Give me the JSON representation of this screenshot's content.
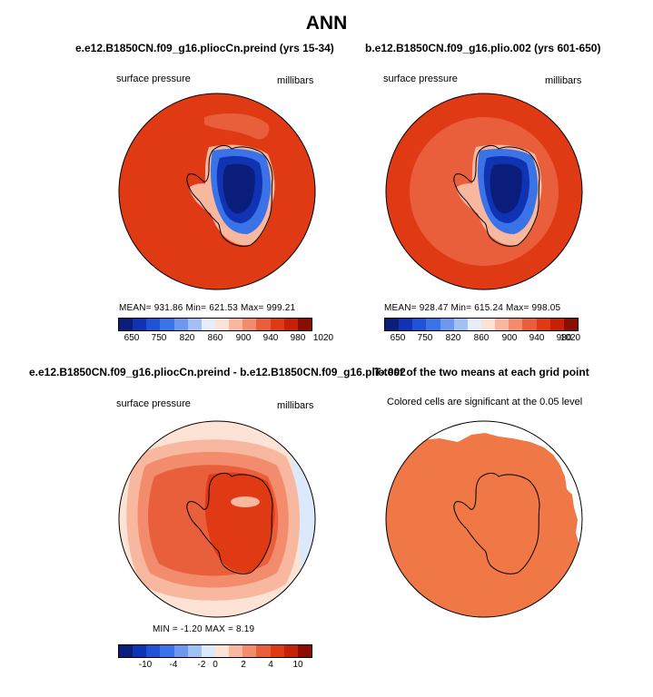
{
  "figure": {
    "title": "ANN"
  },
  "panels": [
    {
      "title": "e.e12.B1850CN.f09_g16.pliocCn.preind (yrs 15-34)",
      "left_label": "surface pressure",
      "right_label": "millibars",
      "stats": "MEAN= 931.86   Min= 621.53   Max= 999.21",
      "colorbar_ticks": [
        "650",
        "750",
        "820",
        "860",
        "900",
        "940",
        "980",
        "1020"
      ]
    },
    {
      "title": "b.e12.B1850CN.f09_g16.plio.002 (yrs 601-650)",
      "left_label": "surface pressure",
      "right_label": "millibars",
      "stats": "MEAN= 928.47   Min= 615.24   Max= 998.05",
      "colorbar_ticks": [
        "650",
        "750",
        "820",
        "860",
        "900",
        "940",
        "980",
        "1020"
      ]
    },
    {
      "title": "e.e12.B1850CN.f09_g16.pliocCn.preind - b.e12.B1850CN.f09_g16.plio.002",
      "left_label": "surface pressure",
      "right_label": "millibars",
      "stats": "MIN =  -1.20  MAX =   8.19",
      "colorbar_ticks": [
        "-10",
        "-4",
        "-2",
        "0",
        "2",
        "4",
        "10"
      ]
    },
    {
      "title": "T-test of the two means at each grid point",
      "subtitle": "Colored cells are significant at the 0.05 level"
    }
  ],
  "colors": {
    "abs_palette": [
      "#0a1d7a",
      "#1033b4",
      "#1f52d6",
      "#3a73e8",
      "#6c98f0",
      "#a3c0f5",
      "#e6eefc",
      "#fde3d6",
      "#f8b79f",
      "#f28c6c",
      "#ea5f3b",
      "#e03a14",
      "#c62006",
      "#8b0c00"
    ],
    "diff_palette": [
      "#0a1d7a",
      "#1033b4",
      "#1f52d6",
      "#3a73e8",
      "#6c98f0",
      "#a3c0f5",
      "#dce8fb",
      "#fde3d6",
      "#f8b79f",
      "#f28c6c",
      "#ea5f3b",
      "#e03a14",
      "#c62006",
      "#8b0c00"
    ],
    "ttest_fill": "#f07746"
  }
}
